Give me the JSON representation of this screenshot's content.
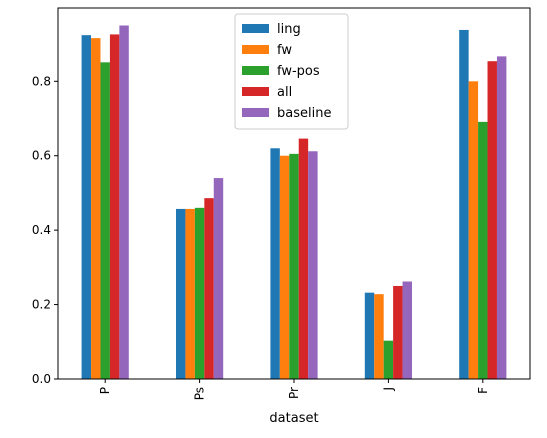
{
  "chart_data": {
    "type": "bar",
    "title": "",
    "xlabel": "dataset",
    "ylabel": "",
    "categories": [
      "P",
      "Ps",
      "Pr",
      "J",
      "F"
    ],
    "ylim": [
      0,
      0.997
    ],
    "yticks": [
      0.0,
      0.2,
      0.4,
      0.6,
      0.8
    ],
    "ytick_labels": [
      "0.0",
      "0.2",
      "0.4",
      "0.6",
      "0.8"
    ],
    "grid": false,
    "legend_position": "top-center",
    "series": [
      {
        "name": "ling",
        "color": "#1f77b4",
        "values": [
          0.924,
          0.457,
          0.62,
          0.232,
          0.938
        ]
      },
      {
        "name": "fw",
        "color": "#ff7f0e",
        "values": [
          0.916,
          0.457,
          0.6,
          0.228,
          0.8
        ]
      },
      {
        "name": "fw-pos",
        "color": "#2ca02c",
        "values": [
          0.851,
          0.46,
          0.605,
          0.103,
          0.691
        ]
      },
      {
        "name": "all",
        "color": "#d62728",
        "values": [
          0.926,
          0.486,
          0.646,
          0.25,
          0.854
        ]
      },
      {
        "name": "baseline",
        "color": "#9467bd",
        "values": [
          0.95,
          0.54,
          0.612,
          0.262,
          0.867
        ]
      }
    ]
  }
}
